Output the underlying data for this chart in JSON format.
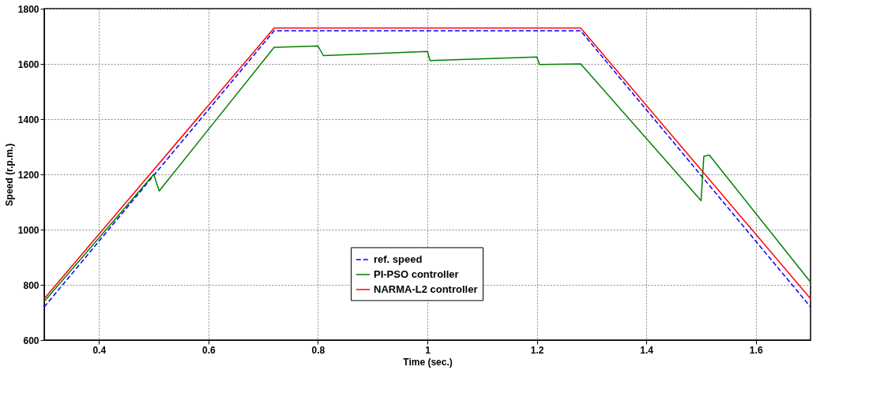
{
  "chart_data": {
    "type": "line",
    "xlabel": "Time (sec.)",
    "ylabel": "Speed (r.p.m.)",
    "xlim": [
      0.3,
      1.7
    ],
    "xticks": [
      0.4,
      0.6,
      0.8,
      1,
      1.2,
      1.4,
      1.6
    ],
    "ylim": [
      600,
      1800
    ],
    "yticks": [
      600,
      800,
      1000,
      1200,
      1400,
      1600,
      1800
    ],
    "grid": true,
    "legend": "bottom",
    "marker": "none",
    "series": [
      {
        "name": "ref. speed",
        "color": "#0000ff",
        "line_style": "dashed",
        "x": [
          0.3,
          0.72,
          1.28,
          1.7
        ],
        "values": [
          720,
          1720,
          1720,
          720
        ]
      },
      {
        "name": "PI-PSO controller",
        "color": "#008000",
        "line_style": "solid",
        "x": [
          0.3,
          0.5,
          0.51,
          0.72,
          0.8,
          0.81,
          1.0,
          1.005,
          1.2,
          1.205,
          1.28,
          1.5,
          1.505,
          1.515,
          1.7
        ],
        "values": [
          740,
          1200,
          1140,
          1660,
          1665,
          1630,
          1645,
          1612,
          1625,
          1598,
          1600,
          1105,
          1265,
          1270,
          810
        ]
      },
      {
        "name": "NARMA-L2 controller",
        "color": "#ff0000",
        "line_style": "solid",
        "x": [
          0.3,
          0.72,
          1.28,
          1.7
        ],
        "values": [
          750,
          1730,
          1730,
          750
        ]
      }
    ]
  }
}
